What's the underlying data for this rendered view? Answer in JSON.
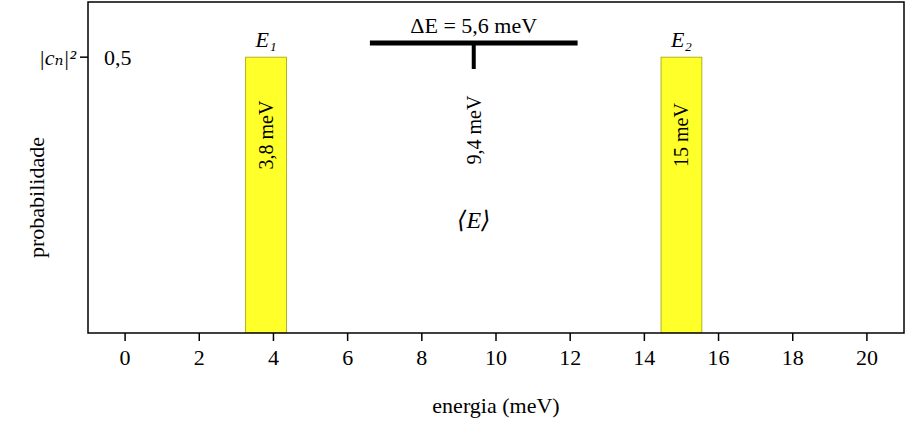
{
  "chart_data": {
    "type": "bar",
    "xlabel": "energia (meV)",
    "ylabel": "probabilidade",
    "ylabel_symbol": "|cₙ|²",
    "categories": [
      "E₁",
      "E₂"
    ],
    "x": [
      3.8,
      15
    ],
    "x_labels": [
      "3,8 meV",
      "15 meV"
    ],
    "values": [
      0.5,
      0.5
    ],
    "color": "#ffff2a",
    "xlim": [
      -1,
      21
    ],
    "xticks": [
      0,
      2,
      4,
      6,
      8,
      10,
      12,
      14,
      16,
      18,
      20
    ],
    "ylim": [
      0,
      0.6
    ],
    "yticks": [
      {
        "value": 0.5,
        "label": "0,5"
      }
    ],
    "grid": false,
    "annotations": [
      {
        "text": "ΔE = 5,6 meV",
        "value": 5.6,
        "center": 9.4
      },
      {
        "text": "9,4 meV",
        "value": 9.4
      },
      {
        "text": "⟨E⟩"
      }
    ]
  }
}
